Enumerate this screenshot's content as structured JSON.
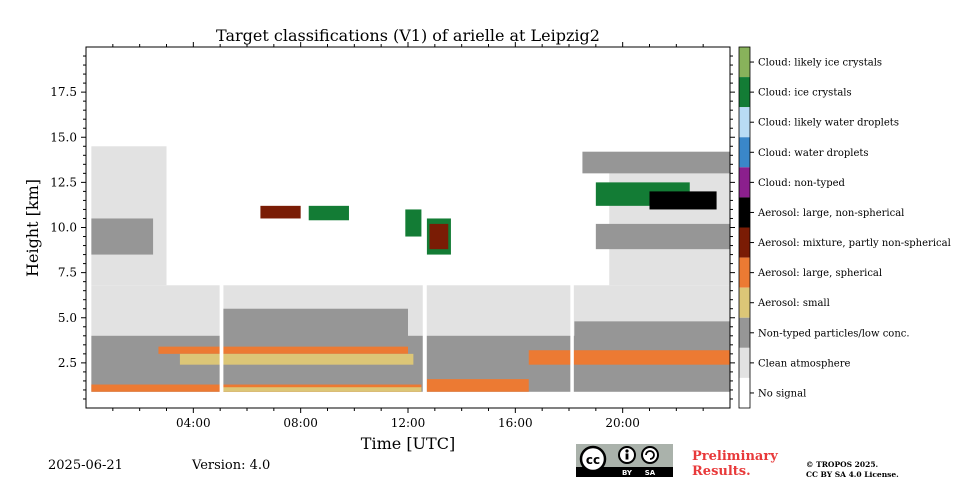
{
  "chart_data": {
    "type": "heatmap",
    "title": "Target classifications (V1) of arielle at Leipzig2",
    "xlabel": "Time [UTC]",
    "ylabel": "Height [km]",
    "xlim_hours": [
      0,
      24
    ],
    "ylim_km": [
      0,
      20
    ],
    "x_ticks": [
      {
        "value": 4,
        "label": "04:00"
      },
      {
        "value": 8,
        "label": "08:00"
      },
      {
        "value": 12,
        "label": "12:00"
      },
      {
        "value": 16,
        "label": "16:00"
      },
      {
        "value": 20,
        "label": "20:00"
      }
    ],
    "y_ticks": [
      {
        "value": 2.5,
        "label": "2.5"
      },
      {
        "value": 5.0,
        "label": "5.0"
      },
      {
        "value": 7.5,
        "label": "7.5"
      },
      {
        "value": 10.0,
        "label": "10.0"
      },
      {
        "value": 12.5,
        "label": "12.5"
      },
      {
        "value": 15.0,
        "label": "15.0"
      },
      {
        "value": 17.5,
        "label": "17.5"
      }
    ],
    "data_gaps_hours": [
      [
        4.98,
        5.12
      ],
      [
        12.55,
        12.7
      ],
      [
        18.05,
        18.18
      ]
    ],
    "legend": [
      {
        "label": "Cloud: likely ice crystals",
        "color": "#88b25b"
      },
      {
        "label": "Cloud: ice crystals",
        "color": "#137c35"
      },
      {
        "label": "Cloud: likely water droplets",
        "color": "#b9dcf5"
      },
      {
        "label": "Cloud: water droplets",
        "color": "#3a87c9"
      },
      {
        "label": "Cloud: non-typed",
        "color": "#8b1f8d"
      },
      {
        "label": "Aerosol: large, non-spherical",
        "color": "#000000"
      },
      {
        "label": "Aerosol: mixture, partly non-spherical",
        "color": "#7a1c05"
      },
      {
        "label": "Aerosol: large, spherical",
        "color": "#ec7a33"
      },
      {
        "label": "Aerosol: small",
        "color": "#dcc677"
      },
      {
        "label": "Non-typed particles/low conc.",
        "color": "#969696"
      },
      {
        "label": "Clean atmosphere",
        "color": "#e2e2e2"
      },
      {
        "label": "No signal",
        "color": "#ffffff"
      }
    ],
    "regions": [
      {
        "class": "Clean atmosphere",
        "t": [
          0.2,
          24
        ],
        "h": [
          0.9,
          6.8
        ]
      },
      {
        "class": "Clean atmosphere",
        "t": [
          0.2,
          3.0
        ],
        "h": [
          6.8,
          14.5
        ]
      },
      {
        "class": "Clean atmosphere",
        "t": [
          19.5,
          24
        ],
        "h": [
          6.8,
          13.5
        ]
      },
      {
        "class": "Non-typed particles/low conc.",
        "t": [
          0.2,
          24
        ],
        "h": [
          0.9,
          4.0
        ]
      },
      {
        "class": "Non-typed particles/low conc.",
        "t": [
          5.1,
          12.0
        ],
        "h": [
          3.5,
          5.5
        ]
      },
      {
        "class": "Non-typed particles/low conc.",
        "t": [
          18.2,
          24
        ],
        "h": [
          3.2,
          4.8
        ]
      },
      {
        "class": "Non-typed particles/low conc.",
        "t": [
          0.2,
          2.5
        ],
        "h": [
          8.5,
          10.5
        ]
      },
      {
        "class": "Non-typed particles/low conc.",
        "t": [
          19.0,
          24
        ],
        "h": [
          8.8,
          10.2
        ]
      },
      {
        "class": "Non-typed particles/low conc.",
        "t": [
          18.5,
          24
        ],
        "h": [
          13.0,
          14.2
        ]
      },
      {
        "class": "Aerosol: large, spherical",
        "t": [
          0.2,
          12.5
        ],
        "h": [
          0.9,
          1.3
        ]
      },
      {
        "class": "Aerosol: large, spherical",
        "t": [
          12.7,
          16.5
        ],
        "h": [
          0.9,
          1.6
        ]
      },
      {
        "class": "Aerosol: large, spherical",
        "t": [
          2.7,
          12.0
        ],
        "h": [
          3.0,
          3.4
        ]
      },
      {
        "class": "Aerosol: large, spherical",
        "t": [
          16.5,
          24
        ],
        "h": [
          2.4,
          3.2
        ]
      },
      {
        "class": "Aerosol: small",
        "t": [
          3.5,
          12.2
        ],
        "h": [
          2.4,
          3.0
        ]
      },
      {
        "class": "Aerosol: small",
        "t": [
          5.1,
          12.5
        ],
        "h": [
          0.9,
          1.15
        ]
      },
      {
        "class": "Cloud: ice crystals",
        "t": [
          8.3,
          9.8
        ],
        "h": [
          10.4,
          11.2
        ]
      },
      {
        "class": "Cloud: ice crystals",
        "t": [
          11.9,
          12.5
        ],
        "h": [
          9.5,
          11.0
        ]
      },
      {
        "class": "Cloud: ice crystals",
        "t": [
          12.7,
          13.6
        ],
        "h": [
          8.5,
          10.5
        ]
      },
      {
        "class": "Cloud: ice crystals",
        "t": [
          19.0,
          22.5
        ],
        "h": [
          11.2,
          12.5
        ]
      },
      {
        "class": "Aerosol: mixture, partly non-spherical",
        "t": [
          6.5,
          8.0
        ],
        "h": [
          10.5,
          11.2
        ]
      },
      {
        "class": "Aerosol: mixture, partly non-spherical",
        "t": [
          12.8,
          13.5
        ],
        "h": [
          8.8,
          10.2
        ]
      },
      {
        "class": "Aerosol: large, non-spherical",
        "t": [
          21.0,
          23.5
        ],
        "h": [
          11.0,
          12.0
        ]
      }
    ]
  },
  "footer": {
    "date": "2025-06-21",
    "version": "Version: 4.0",
    "preliminary_line1": "Preliminary",
    "preliminary_line2": "Results.",
    "copyright_line1": "© TROPOS 2025.",
    "copyright_line2": "CC BY SA 4.0 License.",
    "license_badge": {
      "cc": "cc",
      "by": "BY",
      "sa": "SA"
    }
  }
}
